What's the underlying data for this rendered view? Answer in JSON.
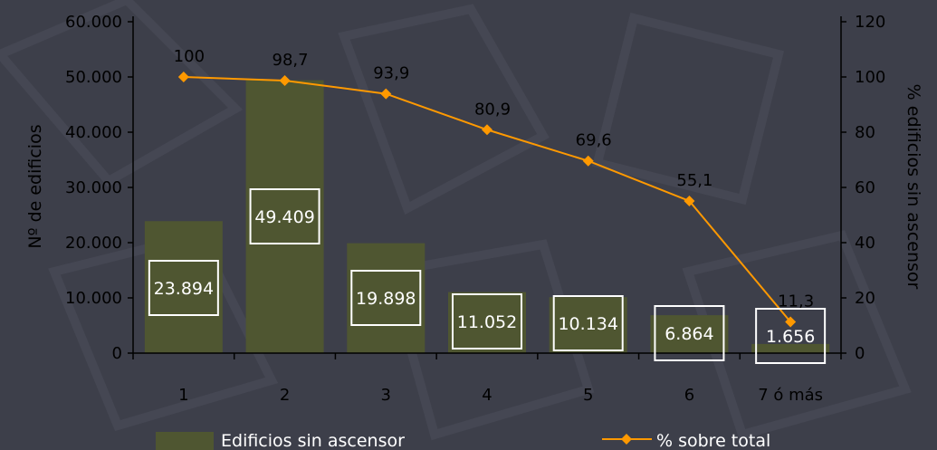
{
  "chart_data": {
    "type": "bar",
    "categories": [
      "1",
      "2",
      "3",
      "4",
      "5",
      "6",
      "7 ó más"
    ],
    "series": [
      {
        "name": "Edificios sin ascensor",
        "type": "bar",
        "axis": "left",
        "values": [
          23894,
          49409,
          19898,
          11052,
          10134,
          6864,
          1656
        ],
        "labels": [
          "23.894",
          "49.409",
          "19.898",
          "11.052",
          "10.134",
          "6.864",
          "1.656"
        ]
      },
      {
        "name": "% sobre total",
        "type": "line",
        "axis": "right",
        "values": [
          100,
          98.7,
          93.9,
          80.9,
          69.6,
          55.1,
          11.3
        ],
        "labels": [
          "100",
          "98,7",
          "93,9",
          "80,9",
          "69,6",
          "55,1",
          "11,3"
        ]
      }
    ],
    "ylabel": "Nº de edificios",
    "y2label": "% edificios sin ascensor",
    "ylim": [
      0,
      60000
    ],
    "y2lim": [
      0,
      120
    ],
    "yticks": [
      "0",
      "10.000",
      "20.000",
      "30.000",
      "40.000",
      "50.000",
      "60.000"
    ],
    "y2ticks": [
      "0",
      "20",
      "40",
      "60",
      "80",
      "100",
      "120"
    ],
    "grid": false,
    "legend": "bottom"
  },
  "colors": {
    "bar": "#4f5631",
    "line": "#ff9900",
    "axis": "#000000",
    "background": "#3d3f4a"
  }
}
